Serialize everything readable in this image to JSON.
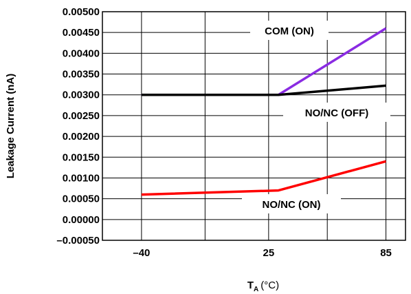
{
  "chart_data": {
    "type": "line",
    "title": "",
    "xlabel": {
      "main": "T",
      "subscript": "A",
      "unit": "(°C)"
    },
    "ylabel": "Leakage Current (nA)",
    "x_ticks": [
      -40,
      25,
      85
    ],
    "x_tick_labels": [
      "–40",
      "25",
      "85"
    ],
    "y_ticks": [
      -0.0005,
      0.0,
      0.0005,
      0.001,
      0.0015,
      0.002,
      0.0025,
      0.003,
      0.0035,
      0.004,
      0.0045,
      0.005
    ],
    "y_tick_labels": [
      "–0.00050",
      "0.00000",
      "0.00050",
      "0.00100",
      "0.00150",
      "0.00200",
      "0.00250",
      "0.00300",
      "0.00350",
      "0.00400",
      "0.00450",
      "0.00500"
    ],
    "xlim": [
      -60,
      95
    ],
    "ylim": [
      -0.0005,
      0.005
    ],
    "grid": true,
    "legend": "none",
    "series": [
      {
        "name": "COM (ON)",
        "color": "#8a2be2",
        "x": [
          -40,
          30,
          85
        ],
        "y": [
          0.003,
          0.003,
          0.0046
        ]
      },
      {
        "name": "NO/NC (OFF)",
        "color": "#000000",
        "x": [
          -40,
          30,
          85
        ],
        "y": [
          0.003,
          0.003,
          0.00322
        ]
      },
      {
        "name": "NO/NC (ON)",
        "color": "#ff0000",
        "x": [
          -40,
          30,
          85
        ],
        "y": [
          0.0006,
          0.0007,
          0.0014
        ]
      }
    ]
  }
}
